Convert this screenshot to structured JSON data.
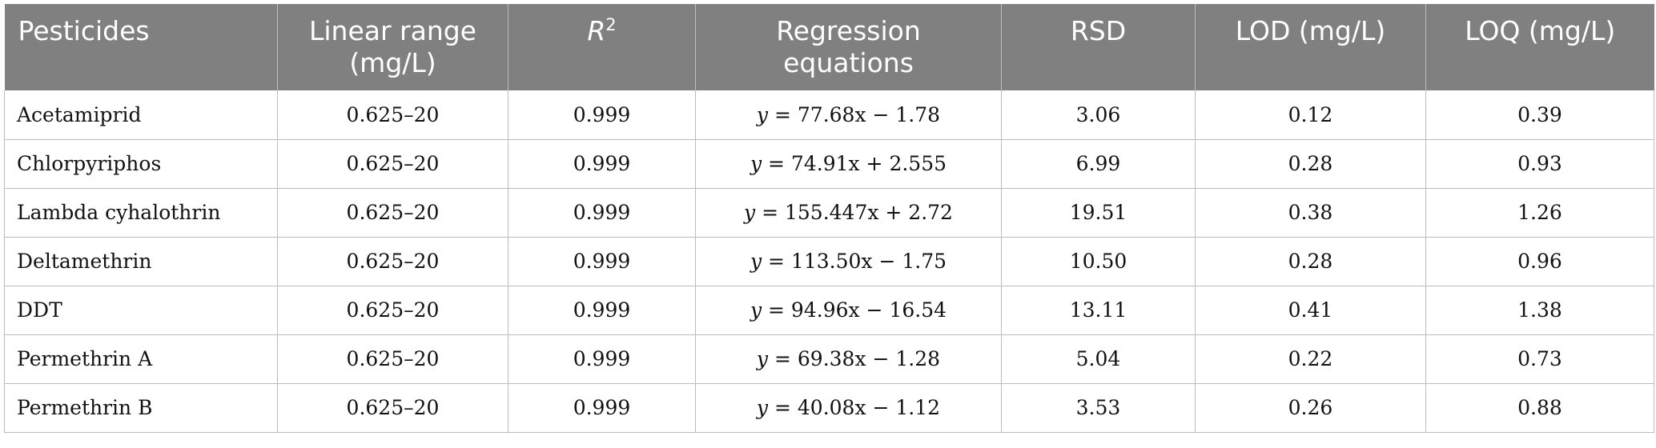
{
  "table": {
    "headers": {
      "pesticides": "Pesticides",
      "linear_range_line1": "Linear range",
      "linear_range_line2": "(mg/L)",
      "r2_base": "R",
      "r2_sup": "2",
      "regression_line1": "Regression",
      "regression_line2": "equations",
      "rsd": "RSD",
      "lod": "LOD (mg/L)",
      "loq": "LOQ (mg/L)"
    },
    "rows": [
      {
        "pesticide": "Acetamiprid",
        "linear_range": "0.625–20",
        "r2": "0.999",
        "eq_y": "y",
        "eq_rest": " = 77.68x − 1.78",
        "rsd": "3.06",
        "lod": "0.12",
        "loq": "0.39"
      },
      {
        "pesticide": "Chlorpyriphos",
        "linear_range": "0.625–20",
        "r2": "0.999",
        "eq_y": "y",
        "eq_rest": " = 74.91x + 2.555",
        "rsd": "6.99",
        "lod": "0.28",
        "loq": "0.93"
      },
      {
        "pesticide": "Lambda cyhalothrin",
        "linear_range": "0.625–20",
        "r2": "0.999",
        "eq_y": "y",
        "eq_rest": " = 155.447x + 2.72",
        "rsd": "19.51",
        "lod": "0.38",
        "loq": "1.26"
      },
      {
        "pesticide": "Deltamethrin",
        "linear_range": "0.625–20",
        "r2": "0.999",
        "eq_y": "y",
        "eq_rest": " = 113.50x − 1.75",
        "rsd": "10.50",
        "lod": "0.28",
        "loq": "0.96"
      },
      {
        "pesticide": "DDT",
        "linear_range": "0.625–20",
        "r2": "0.999",
        "eq_y": "y",
        "eq_rest": " = 94.96x − 16.54",
        "rsd": "13.11",
        "lod": "0.41",
        "loq": "1.38"
      },
      {
        "pesticide": "Permethrin A",
        "linear_range": "0.625–20",
        "r2": "0.999",
        "eq_y": "y",
        "eq_rest": " = 69.38x − 1.28",
        "rsd": "5.04",
        "lod": "0.22",
        "loq": "0.73"
      },
      {
        "pesticide": "Permethrin B",
        "linear_range": "0.625–20",
        "r2": "0.999",
        "eq_y": "y",
        "eq_rest": " = 40.08x − 1.12",
        "rsd": "3.53",
        "lod": "0.26",
        "loq": "0.88"
      }
    ]
  }
}
